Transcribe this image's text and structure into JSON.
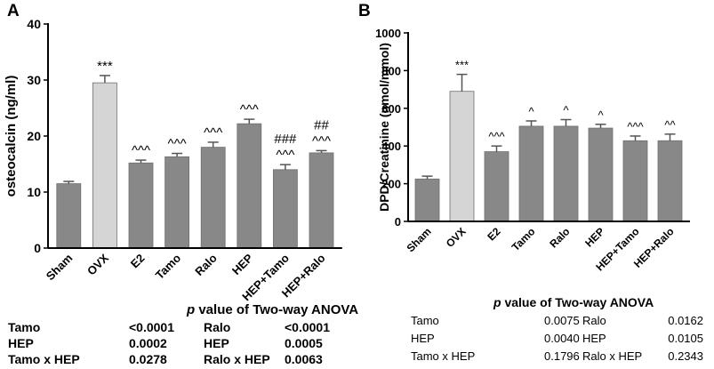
{
  "chart_data": [
    {
      "panel_label": "A",
      "type": "bar",
      "ylabel": "osteocalcin (ng/ml)",
      "xlabel": "",
      "ylim": [
        0,
        40
      ],
      "yticks": [
        "0",
        "10",
        "20",
        "30",
        "40"
      ],
      "categories": [
        "Sham",
        "OVX",
        "E2",
        "Tamo",
        "Ralo",
        "HEP",
        "HEP+Tamo",
        "HEP+Ralo"
      ],
      "values": [
        11.5,
        29.5,
        15.2,
        16.3,
        18.0,
        22.2,
        14.0,
        17.0
      ],
      "errors": [
        0.4,
        1.3,
        0.5,
        0.6,
        0.9,
        0.8,
        0.9,
        0.4
      ],
      "annotations": [
        "",
        "***",
        "^^^",
        "^^^",
        "^^^",
        "^^^",
        "###\n^^^",
        "##\n^^^"
      ],
      "bar_colors": [
        "#888888",
        "#d5d5d5",
        "#888888",
        "#888888",
        "#888888",
        "#888888",
        "#888888",
        "#888888"
      ],
      "anova": {
        "title_italic": "p",
        "title_rest": " value of Two-way ANOVA",
        "rows": [
          [
            "Tamo",
            "<0.0001",
            "Ralo",
            "<0.0001"
          ],
          [
            "HEP",
            "0.0002",
            "HEP",
            "0.0005"
          ],
          [
            "Tamo x HEP",
            "0.0278",
            "Ralo x HEP",
            "0.0063"
          ]
        ]
      }
    },
    {
      "panel_label": "B",
      "type": "bar",
      "ylabel": "DPD/Creatinine (nmol/mmol)",
      "xlabel": "",
      "ylim": [
        0,
        1000
      ],
      "yticks": [
        "0",
        "200",
        "400",
        "600",
        "800",
        "1000"
      ],
      "categories": [
        "Sham",
        "OVX",
        "E2",
        "Tamo",
        "Ralo",
        "HEP",
        "HEP+Tamo",
        "HEP+Ralo"
      ],
      "values": [
        225,
        690,
        370,
        505,
        505,
        495,
        428,
        428
      ],
      "errors": [
        15,
        90,
        30,
        28,
        35,
        20,
        25,
        35
      ],
      "annotations": [
        "",
        "***",
        "^^^",
        "^",
        "^",
        "^",
        "^^^",
        "^^"
      ],
      "bar_colors": [
        "#888888",
        "#d5d5d5",
        "#888888",
        "#888888",
        "#888888",
        "#888888",
        "#888888",
        "#888888"
      ],
      "anova": {
        "title_italic": "p",
        "title_rest": " value of Two-way ANOVA",
        "rows": [
          [
            "Tamo",
            "0.0075",
            "Ralo",
            "0.0162"
          ],
          [
            "HEP",
            "0.0040",
            "HEP",
            "0.0105"
          ],
          [
            "Tamo x HEP",
            "0.1796",
            "Ralo x HEP",
            "0.2343"
          ]
        ]
      }
    }
  ]
}
